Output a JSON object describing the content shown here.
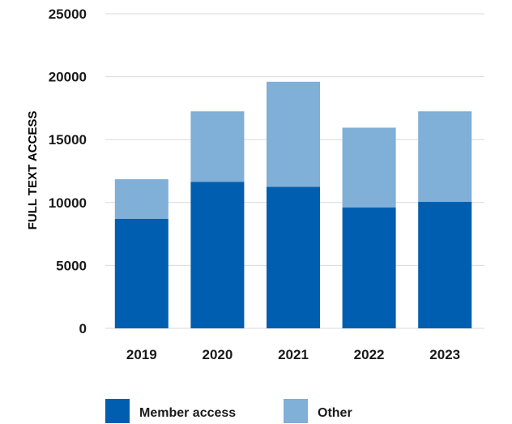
{
  "chart_data": {
    "type": "bar",
    "stacked": true,
    "categories": [
      "2019",
      "2020",
      "2021",
      "2022",
      "2023"
    ],
    "series": [
      {
        "name": "Member access",
        "color": "#005EB0",
        "values": [
          8700,
          11650,
          11250,
          9600,
          10050
        ]
      },
      {
        "name": "Other",
        "color": "#80AFD7",
        "values": [
          3150,
          5600,
          8350,
          6350,
          7200
        ]
      }
    ],
    "ylabel": "FULL TEXT ACCESS",
    "ylim": [
      0,
      25000
    ],
    "yticks": [
      "0",
      "5000",
      "10000",
      "15000",
      "20000",
      "25000"
    ],
    "grid": true,
    "legend_position": "bottom"
  }
}
